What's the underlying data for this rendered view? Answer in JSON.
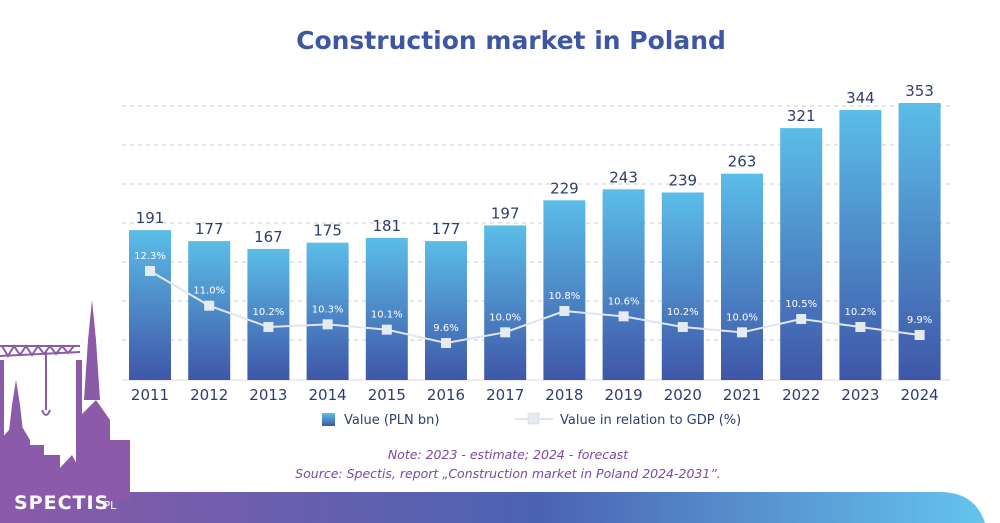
{
  "chart_data": {
    "type": "bar",
    "title": "Construction market in Poland",
    "categories": [
      "2011",
      "2012",
      "2013",
      "2014",
      "2015",
      "2016",
      "2017",
      "2018",
      "2019",
      "2020",
      "2021",
      "2022",
      "2023",
      "2024"
    ],
    "series": [
      {
        "name": "Value (PLN bn)",
        "type": "bar",
        "values": [
          191,
          177,
          167,
          175,
          181,
          177,
          197,
          229,
          243,
          239,
          263,
          321,
          344,
          353
        ]
      },
      {
        "name": "Value in relation to GDP (%)",
        "type": "line",
        "values": [
          12.3,
          11.0,
          10.2,
          10.3,
          10.1,
          9.6,
          10.0,
          10.8,
          10.6,
          10.2,
          10.0,
          10.5,
          10.2,
          9.9
        ],
        "labels": [
          "12.3%",
          "11.0%",
          "10.2%",
          "10.3%",
          "10.1%",
          "9.6%",
          "10.0%",
          "10.8%",
          "10.6%",
          "10.2%",
          "10.0%",
          "10.5%",
          "10.2%",
          "9.9%"
        ]
      }
    ],
    "ylim": [
      0,
      360
    ],
    "grid": true,
    "legend_position": "bottom",
    "colors": {
      "bar_top": "#5bbde8",
      "bar_bottom": "#3f56a8",
      "line": "#dfe6f2",
      "marker": "#e6ebf3",
      "title": "#3f57a3",
      "note": "#7a4a9c"
    }
  },
  "notes": {
    "line1": "Note: 2023 - estimate; 2024 - forecast",
    "line2": "Source: Spectis, report „Construction market in Poland 2024-2031”."
  },
  "logo": {
    "name": "SPECTIS",
    "suffix": ".PL"
  }
}
